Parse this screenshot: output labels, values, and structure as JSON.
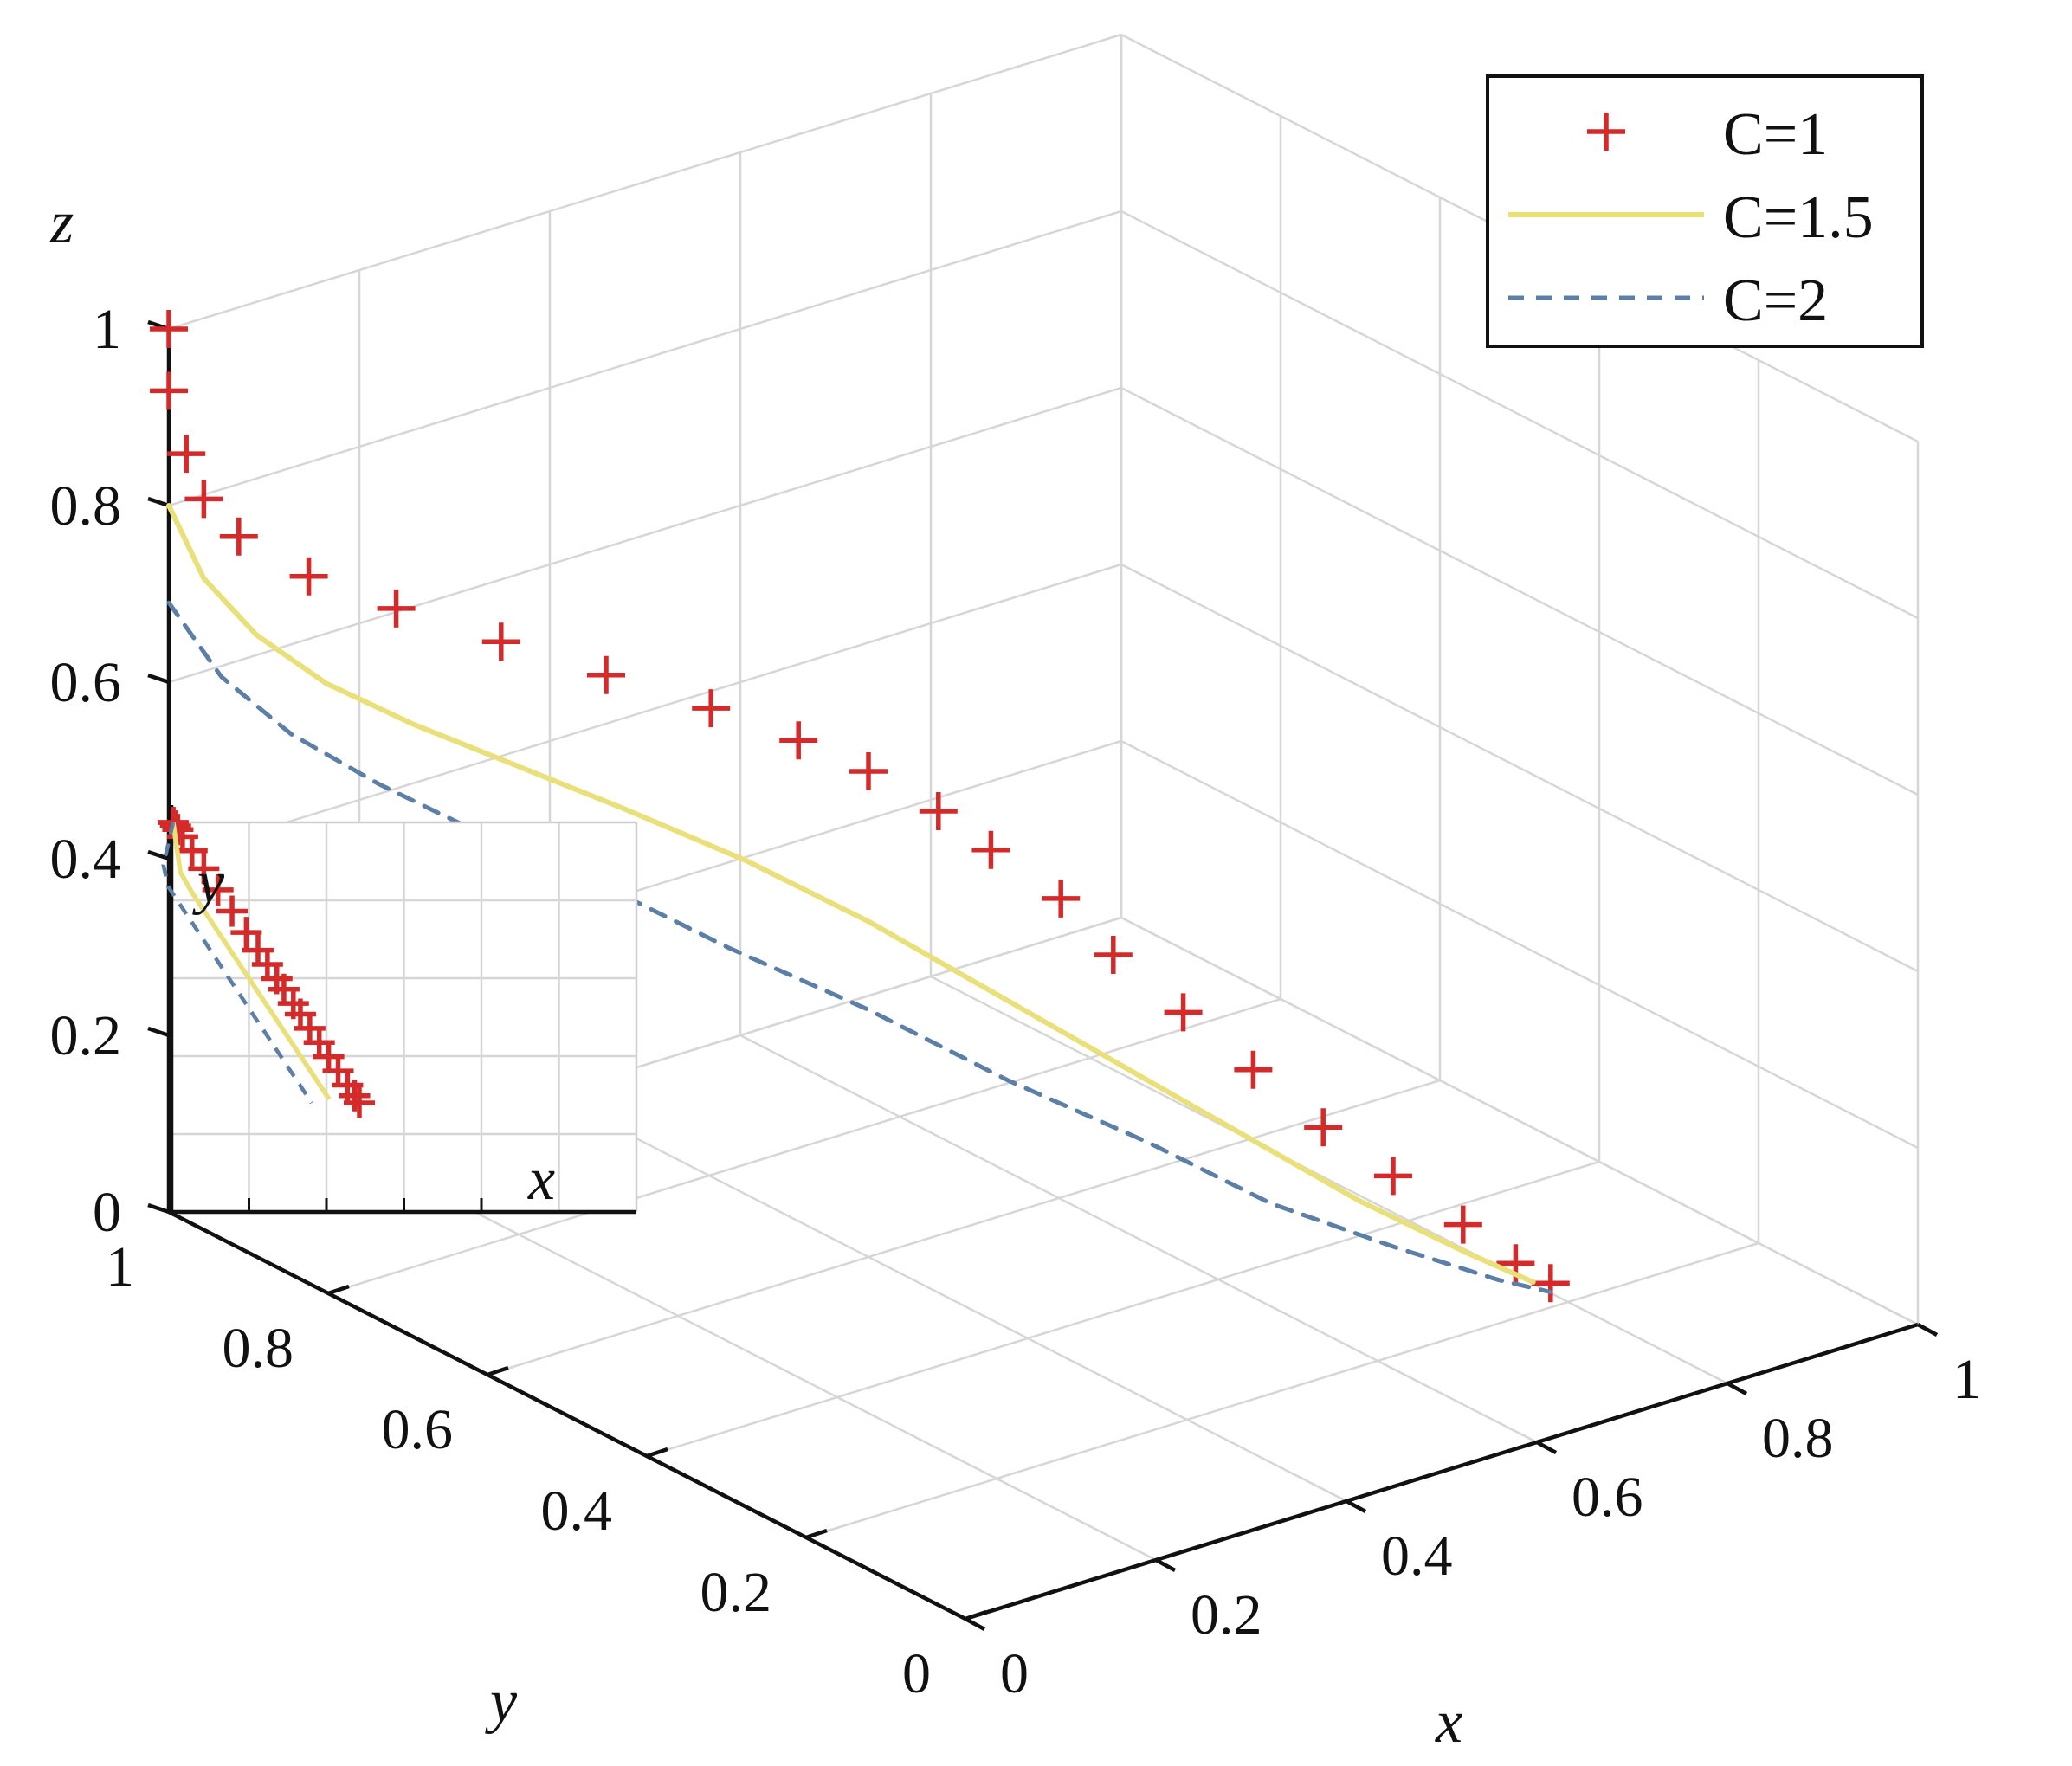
{
  "chart_data": {
    "type": "line3d",
    "xlabel": "x",
    "ylabel": "y",
    "zlabel": "z",
    "xlim": [
      0,
      1
    ],
    "ylim": [
      0,
      1
    ],
    "zlim": [
      0,
      1
    ],
    "xticks": [
      "0",
      "0.2",
      "0.4",
      "0.6",
      "0.8",
      "1"
    ],
    "yticks": [
      "0",
      "0.2",
      "0.4",
      "0.6",
      "0.8",
      "1"
    ],
    "zticks": [
      "0",
      "0.2",
      "0.4",
      "0.6",
      "0.8",
      "1"
    ],
    "grid": true,
    "legend_position": "top-right",
    "inset_xlabel": "x",
    "inset_ylabel": "y",
    "colors": {
      "c1": "#d42a2a",
      "c15": "#e9e07a",
      "c2": "#5b7fa6"
    },
    "series": [
      {
        "name": "C=1",
        "style": "plus-markers",
        "x": [
          0.0,
          0.0,
          0.01,
          0.02,
          0.04,
          0.08,
          0.13,
          0.19,
          0.25,
          0.31,
          0.36,
          0.4,
          0.44,
          0.47,
          0.51,
          0.54,
          0.58,
          0.62,
          0.66,
          0.7,
          0.74,
          0.77,
          0.79
        ],
        "y": [
          1.0,
          1.0,
          0.99,
          0.98,
          0.96,
          0.92,
          0.87,
          0.81,
          0.75,
          0.69,
          0.64,
          0.6,
          0.56,
          0.53,
          0.49,
          0.46,
          0.42,
          0.38,
          0.34,
          0.3,
          0.26,
          0.23,
          0.21
        ],
        "z": [
          1.0,
          0.93,
          0.86,
          0.81,
          0.77,
          0.73,
          0.7,
          0.67,
          0.64,
          0.61,
          0.58,
          0.55,
          0.51,
          0.47,
          0.42,
          0.36,
          0.3,
          0.24,
          0.18,
          0.13,
          0.08,
          0.04,
          0.02
        ]
      },
      {
        "name": "C=1.5",
        "style": "solid",
        "x": [
          0.0,
          0.02,
          0.05,
          0.09,
          0.14,
          0.2,
          0.26,
          0.33,
          0.4,
          0.47,
          0.54,
          0.61,
          0.68,
          0.74,
          0.78
        ],
        "y": [
          1.0,
          0.98,
          0.95,
          0.91,
          0.86,
          0.8,
          0.74,
          0.67,
          0.6,
          0.53,
          0.46,
          0.39,
          0.32,
          0.26,
          0.22
        ],
        "z": [
          0.8,
          0.72,
          0.66,
          0.61,
          0.57,
          0.53,
          0.49,
          0.44,
          0.38,
          0.31,
          0.24,
          0.17,
          0.1,
          0.05,
          0.02
        ]
      },
      {
        "name": "C=2",
        "style": "dashed",
        "x": [
          0.0,
          0.03,
          0.07,
          0.12,
          0.18,
          0.25,
          0.32,
          0.4,
          0.48,
          0.56,
          0.63,
          0.7,
          0.76,
          0.79
        ],
        "y": [
          1.0,
          0.97,
          0.93,
          0.88,
          0.82,
          0.75,
          0.68,
          0.6,
          0.52,
          0.44,
          0.37,
          0.3,
          0.24,
          0.21
        ],
        "z": [
          0.69,
          0.61,
          0.55,
          0.5,
          0.45,
          0.4,
          0.34,
          0.28,
          0.21,
          0.15,
          0.09,
          0.05,
          0.02,
          0.01
        ]
      }
    ]
  }
}
